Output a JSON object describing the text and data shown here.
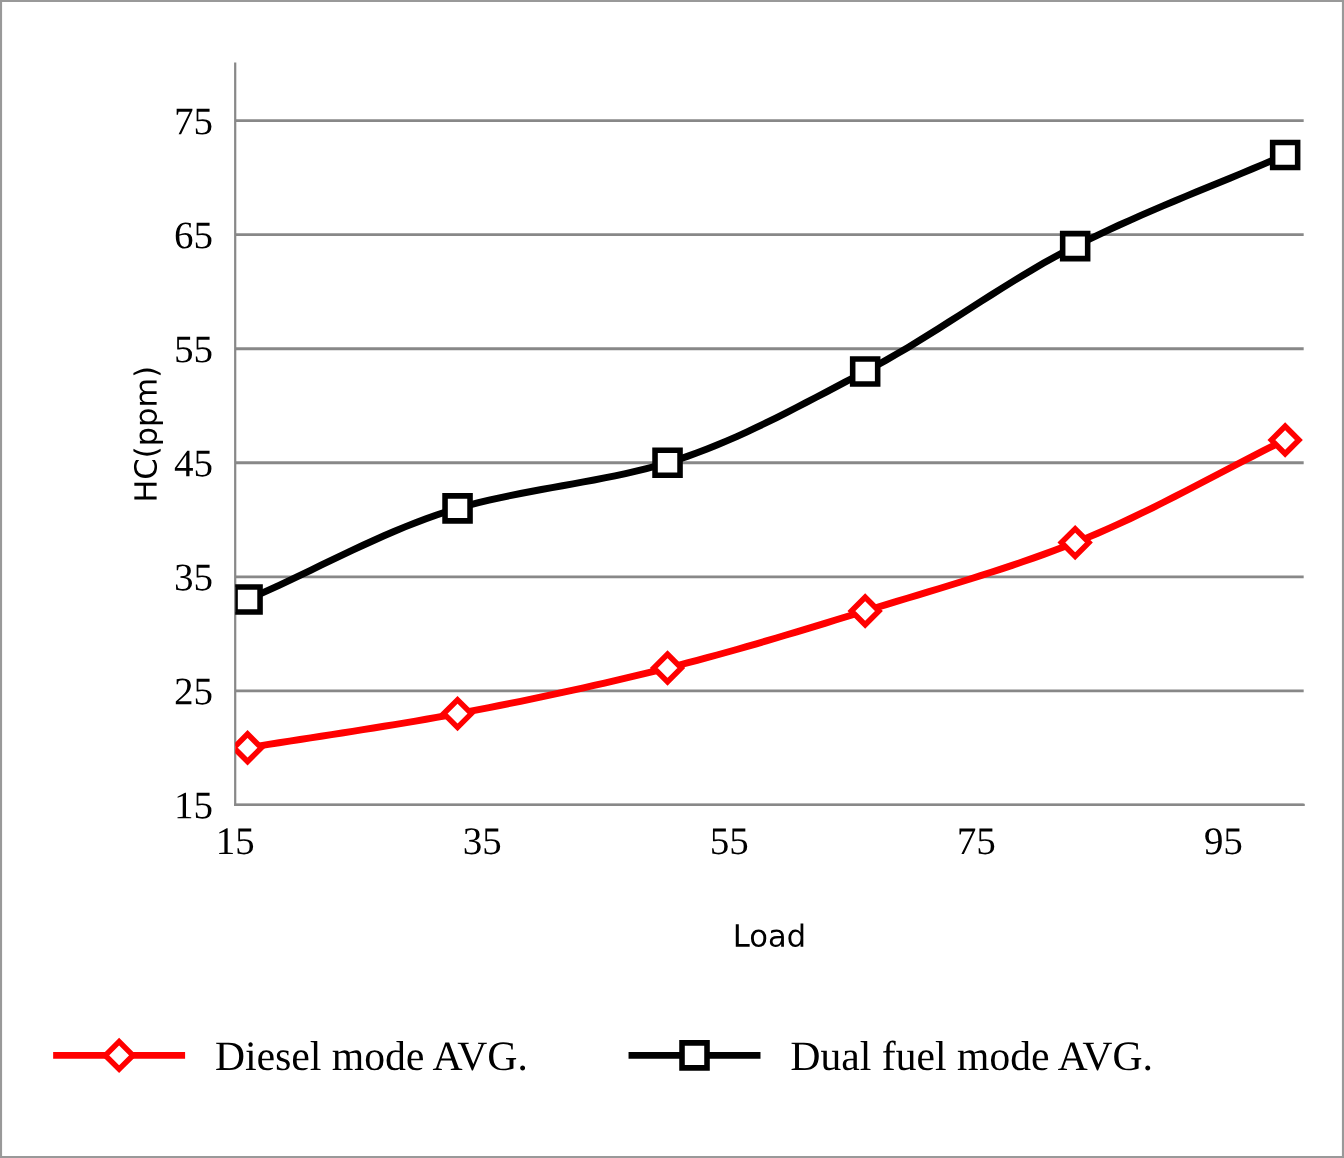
{
  "chart_data": {
    "type": "line",
    "xlabel": "Load",
    "ylabel": "HC(ppm)",
    "x": [
      16,
      33,
      50,
      66,
      83,
      100
    ],
    "series": [
      {
        "name": "Diesel mode AVG.",
        "color": "#ff0000",
        "marker": "diamond",
        "values": [
          20,
          23,
          27,
          32,
          38,
          47
        ]
      },
      {
        "name": "Dual fuel mode AVG.",
        "color": "#000000",
        "marker": "square",
        "values": [
          33,
          41,
          45,
          53,
          64,
          72
        ]
      }
    ],
    "xlim": [
      15,
      101.5
    ],
    "ylim": [
      15,
      80
    ],
    "xticks": [
      15,
      35,
      55,
      75,
      95
    ],
    "yticks": [
      15,
      25,
      35,
      45,
      55,
      65,
      75
    ],
    "grid": "y",
    "legend": "bottom",
    "line_style": "solid"
  }
}
